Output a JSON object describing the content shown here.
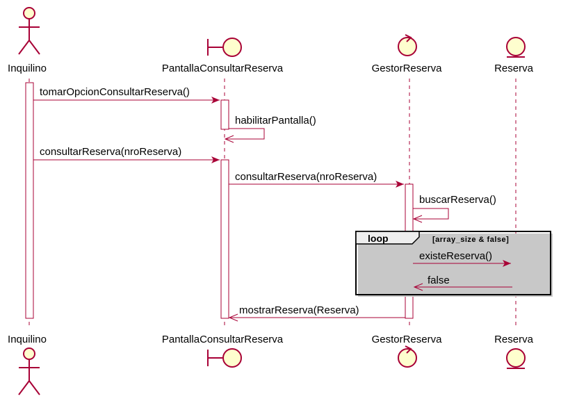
{
  "colors": {
    "line": "#a80036",
    "fill": "#fefece",
    "frame": "#000000",
    "frame_header": "#eeeeee",
    "shadow": "#c8c8c8"
  },
  "participants": [
    {
      "name": "Inquilino",
      "kind": "actor"
    },
    {
      "name": "PantallaConsultarReserva",
      "kind": "boundary"
    },
    {
      "name": "GestorReserva",
      "kind": "control"
    },
    {
      "name": "Reserva",
      "kind": "entity"
    }
  ],
  "messages": [
    {
      "label": "tomarOpcionConsultarReserva()",
      "from": "Inquilino",
      "to": "PantallaConsultarReserva",
      "type": "call"
    },
    {
      "label": "habilitarPantalla()",
      "from": "PantallaConsultarReserva",
      "to": "PantallaConsultarReserva",
      "type": "self"
    },
    {
      "label": "consultarReserva(nroReserva)",
      "from": "Inquilino",
      "to": "PantallaConsultarReserva",
      "type": "call"
    },
    {
      "label": "consultarReserva(nroReserva)",
      "from": "PantallaConsultarReserva",
      "to": "GestorReserva",
      "type": "call"
    },
    {
      "label": "buscarReserva()",
      "from": "GestorReserva",
      "to": "GestorReserva",
      "type": "self"
    },
    {
      "label": "existeReserva()",
      "from": "GestorReserva",
      "to": "Reserva",
      "type": "call"
    },
    {
      "label": "false",
      "from": "Reserva",
      "to": "GestorReserva",
      "type": "return"
    },
    {
      "label": "mostrarReserva(Reserva)",
      "from": "GestorReserva",
      "to": "PantallaConsultarReserva",
      "type": "return"
    }
  ],
  "loop": {
    "keyword": "loop",
    "guard": "[array_size & false]"
  }
}
